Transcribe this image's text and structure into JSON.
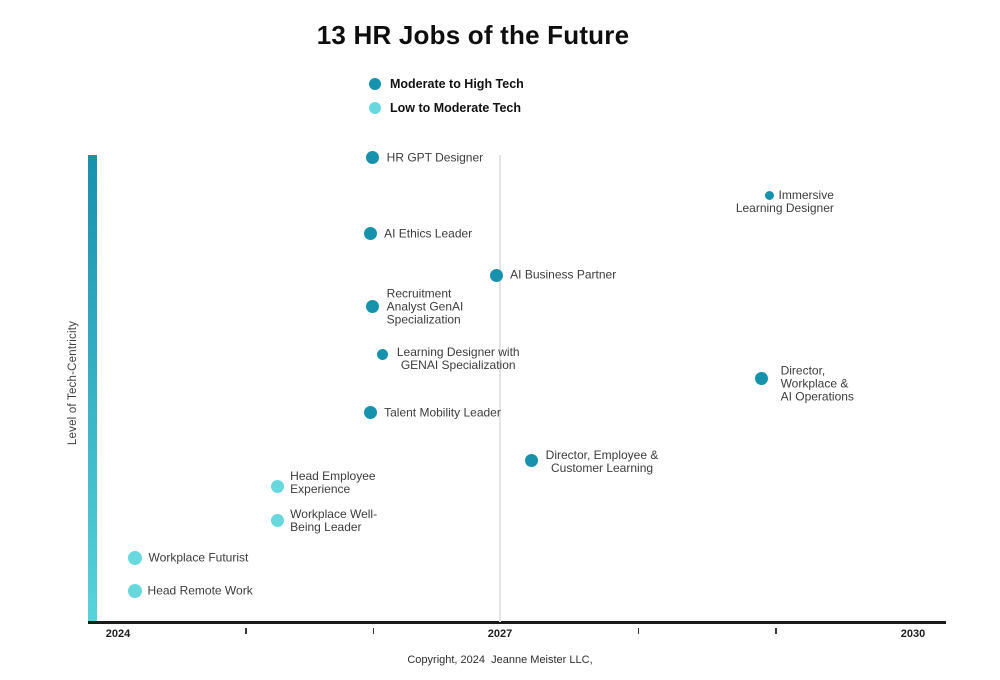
{
  "title": "13 HR Jobs of the Future",
  "legend": [
    {
      "label": "Moderate to High Tech",
      "level": "high"
    },
    {
      "label": "Low to Moderate Tech",
      "level": "low"
    }
  ],
  "y_axis": {
    "label": "Level of Tech-Centricity"
  },
  "footer": "Copyright, 2024  Jeanne Meister LLC,",
  "colors": {
    "high": "#1792ad",
    "low": "#67d9de",
    "bar_top": "#1791ad",
    "bar_bottom": "#57d3da",
    "axis": "#1b1b1b",
    "gridline": "#e4e4e4"
  },
  "chart_data": {
    "type": "scatter",
    "title": "13 HR Jobs of the Future",
    "xlabel": "",
    "ylabel": "Level of Tech-Centricity",
    "xlim": [
      2024,
      2030
    ],
    "ylim": [
      0,
      100
    ],
    "grid": "single vertical gridline at 2027",
    "legend_position": "top-center",
    "x_axis": {
      "tick_labels": [
        "2024",
        "2027",
        "2030"
      ],
      "minor_ticks": [
        2025,
        2026,
        2028,
        2029
      ],
      "gridline_year": 2027
    },
    "series": [
      {
        "name": "Moderate to High Tech",
        "color": "#1792ad",
        "points": [
          {
            "label": [
              "HR GPT Designer"
            ],
            "x": 2026.0,
            "y": 99.4,
            "size": 13,
            "lab": {
              "dx": 14,
              "dy": 0,
              "align": "left"
            }
          },
          {
            "label": [
              "Immersive",
              "Learning Designer"
            ],
            "x": 2028.96,
            "y": 91.4,
            "size": 9,
            "lab": {
              "dx": -34,
              "dy": 7,
              "align": "right"
            }
          },
          {
            "label": [
              "AI Ethics Leader"
            ],
            "x": 2025.98,
            "y": 83.1,
            "size": 13,
            "lab": {
              "dx": 14,
              "dy": 0,
              "align": "left"
            }
          },
          {
            "label": [
              "AI Business Partner"
            ],
            "x": 2026.97,
            "y": 74.3,
            "size": 13,
            "lab": {
              "dx": 14,
              "dy": 0,
              "align": "left"
            }
          },
          {
            "label": [
              "Recruitment",
              "Analyst GenAI",
              "Specialization"
            ],
            "x": 2026.0,
            "y": 67.5,
            "size": 13,
            "lab": {
              "dx": 14,
              "dy": 0,
              "align": "left"
            }
          },
          {
            "label": [
              "Learning Designer with",
              "GENAI Specialization"
            ],
            "x": 2026.08,
            "y": 57.2,
            "size": 11,
            "lab": {
              "dx": 14,
              "dy": 4,
              "align": "center"
            }
          },
          {
            "label": [
              "Director,",
              "Workplace &",
              "AI Operations"
            ],
            "x": 2028.9,
            "y": 52.2,
            "size": 13,
            "lab": {
              "dx": 19,
              "dy": 6,
              "align": "left"
            }
          },
          {
            "label": [
              "Talent Mobility Leader"
            ],
            "x": 2025.98,
            "y": 44.8,
            "size": 13,
            "lab": {
              "dx": 14,
              "dy": 0,
              "align": "left"
            }
          },
          {
            "label": [
              "Director, Employee &",
              "Customer Learning"
            ],
            "x": 2027.23,
            "y": 34.5,
            "size": 13,
            "lab": {
              "dx": 14,
              "dy": 1,
              "align": "center"
            }
          }
        ]
      },
      {
        "name": "Low to Moderate Tech",
        "color": "#67d9de",
        "points": [
          {
            "label": [
              "Head Employee",
              "Experience"
            ],
            "x": 2025.25,
            "y": 29.1,
            "size": 13,
            "lab": {
              "dx": 13,
              "dy": -3,
              "align": "left"
            }
          },
          {
            "label": [
              "Workplace Well-",
              "Being Leader"
            ],
            "x": 2025.25,
            "y": 21.8,
            "size": 13,
            "lab": {
              "dx": 13,
              "dy": 1,
              "align": "left"
            }
          },
          {
            "label": [
              "Workplace Futurist"
            ],
            "x": 2024.13,
            "y": 13.7,
            "size": 14,
            "lab": {
              "dx": 14,
              "dy": 0,
              "align": "left"
            }
          },
          {
            "label": [
              "Head Remote Work"
            ],
            "x": 2024.13,
            "y": 6.6,
            "size": 14,
            "lab": {
              "dx": 13,
              "dy": 0,
              "align": "left"
            }
          }
        ]
      }
    ]
  }
}
